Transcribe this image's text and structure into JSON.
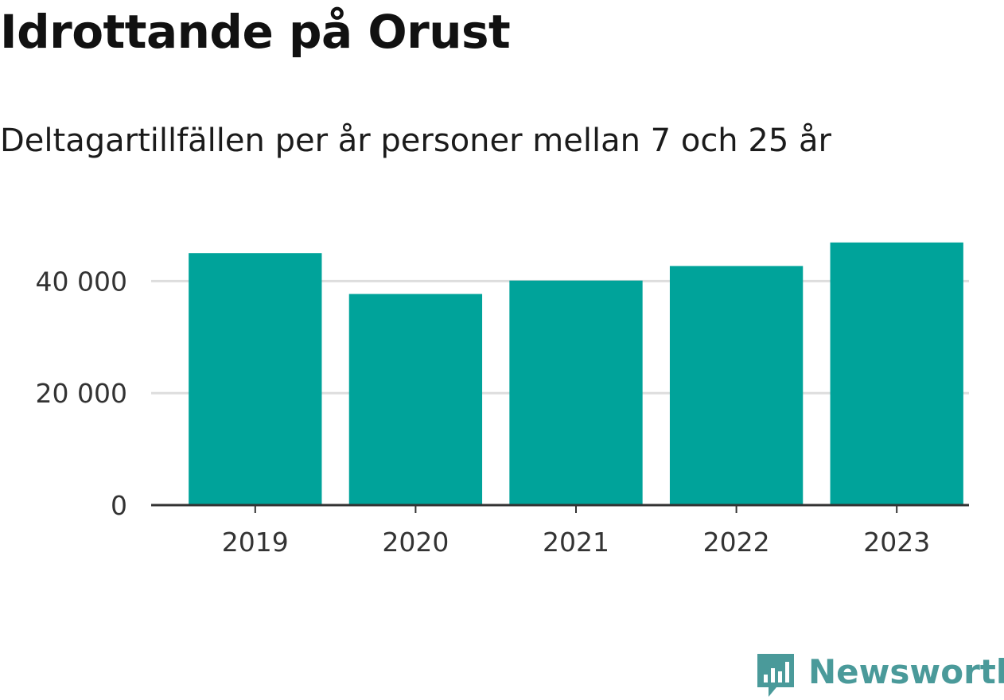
{
  "title": "Idrottande på Orust",
  "subtitle": "Deltagartillfällen per år personer mellan 7 och 25 år",
  "brand": {
    "name": "Newsworthy",
    "icon": "newsworthy-logo-icon",
    "color": "#4a9a9a"
  },
  "chart_data": {
    "type": "bar",
    "categories": [
      "2019",
      "2020",
      "2021",
      "2022",
      "2023"
    ],
    "values": [
      45000,
      37700,
      40100,
      42700,
      46900
    ],
    "y_ticks": [
      0,
      20000,
      40000
    ],
    "y_tick_labels": [
      "0",
      "20 000",
      "40 000"
    ],
    "ylim": [
      0,
      50000
    ],
    "grid": true,
    "bar_color": "#00a39a",
    "grid_color": "#dddddd",
    "axis_color": "#333333"
  }
}
